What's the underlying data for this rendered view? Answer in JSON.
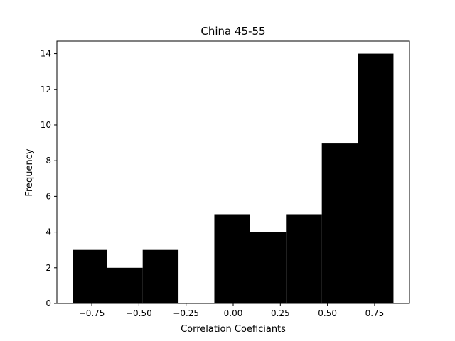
{
  "chart_data": {
    "type": "bar",
    "title": "China 45-55",
    "xlabel": "Correlation Coeficiants",
    "ylabel": "Frequency",
    "bins": [
      {
        "start": -0.85,
        "end": -0.67,
        "count": 3
      },
      {
        "start": -0.67,
        "end": -0.48,
        "count": 2
      },
      {
        "start": -0.48,
        "end": -0.29,
        "count": 3
      },
      {
        "start": -0.29,
        "end": -0.1,
        "count": 0
      },
      {
        "start": -0.1,
        "end": 0.09,
        "count": 5
      },
      {
        "start": 0.09,
        "end": 0.28,
        "count": 4
      },
      {
        "start": 0.28,
        "end": 0.47,
        "count": 5
      },
      {
        "start": 0.47,
        "end": 0.66,
        "count": 9
      },
      {
        "start": 0.66,
        "end": 0.85,
        "count": 14
      }
    ],
    "xlim": [
      -0.935,
      0.935
    ],
    "ylim": [
      0,
      14.7
    ],
    "xticks": [
      -0.75,
      -0.5,
      -0.25,
      0.0,
      0.25,
      0.5,
      0.75
    ],
    "xtick_labels": [
      "−0.75",
      "−0.50",
      "−0.25",
      "0.00",
      "0.25",
      "0.50",
      "0.75"
    ],
    "yticks": [
      0,
      2,
      4,
      6,
      8,
      10,
      12,
      14
    ],
    "ytick_labels": [
      "0",
      "2",
      "4",
      "6",
      "8",
      "10",
      "12",
      "14"
    ],
    "bar_color": "#000000",
    "grid": false
  }
}
